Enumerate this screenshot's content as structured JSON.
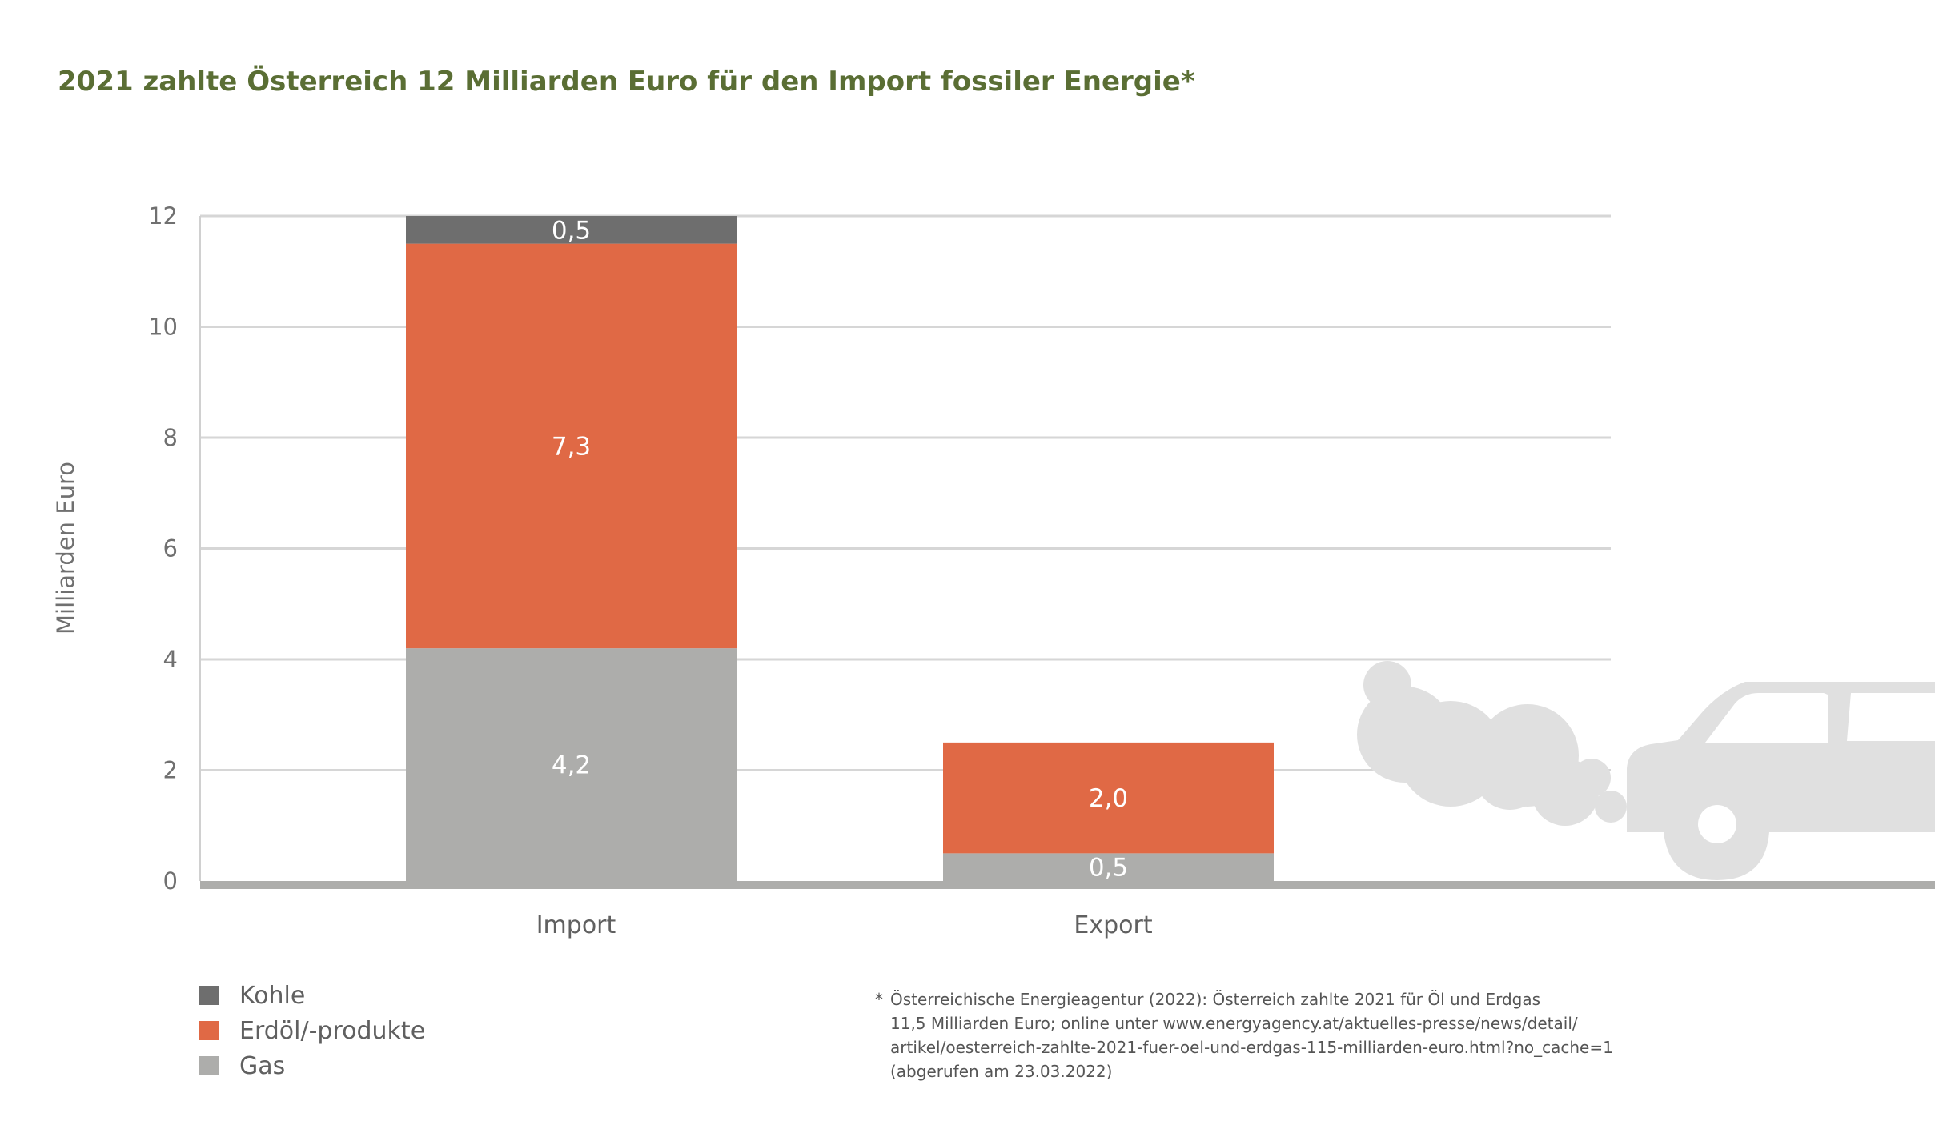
{
  "title": "2021 zahlte Österreich 12 Milliarden Euro für den Import fossiler Energie*",
  "chart_data": {
    "type": "bar",
    "stacked": true,
    "title": "2021 zahlte Österreich 12 Milliarden Euro für den Import fossiler Energie*",
    "xlabel": "",
    "ylabel": "Milliarden Euro",
    "ylim": [
      0,
      12
    ],
    "yticks": [
      "0",
      "2",
      "4",
      "6",
      "8",
      "10",
      "12"
    ],
    "categories": [
      "Import",
      "Export"
    ],
    "grid": true,
    "legend_position": "bottom-left",
    "series": [
      {
        "name": "Gas",
        "values": [
          4.2,
          0.5
        ],
        "labels": [
          "4,2",
          "0,5"
        ],
        "color": "#adadab"
      },
      {
        "name": "Erdöl/-produkte",
        "values": [
          7.3,
          2.0
        ],
        "labels": [
          "7,3",
          "2,0"
        ],
        "color": "#e06945"
      },
      {
        "name": "Kohle",
        "values": [
          0.5,
          null
        ],
        "labels": [
          "0,5",
          ""
        ],
        "color": "#6e6e6e"
      }
    ]
  },
  "legend": [
    {
      "label": "Kohle",
      "color": "#6e6e6e"
    },
    {
      "label": "Erdöl/-produkte",
      "color": "#e06945"
    },
    {
      "label": "Gas",
      "color": "#adadab"
    }
  ],
  "footnote": {
    "marker": "*",
    "lines": [
      "Österreichische Energieagentur (2022): Österreich zahlte 2021 für Öl und Erdgas",
      "11,5 Milliarden Euro; online unter www.energyagency.at/aktuelles-presse/news/detail/",
      "artikel/oesterreich-zahlte-2021-fuer-oel-und-erdgas-115-milliarden-euro.html?no_cache=1",
      "(abgerufen am 23.03.2022)"
    ]
  },
  "decoration": {
    "icon": "car-exhaust-icon",
    "color": "#e0e0e0"
  },
  "colors": {
    "title": "#5a6e34",
    "grid": "#d6d6d6",
    "axis": "#adadab",
    "text": "#707070"
  }
}
